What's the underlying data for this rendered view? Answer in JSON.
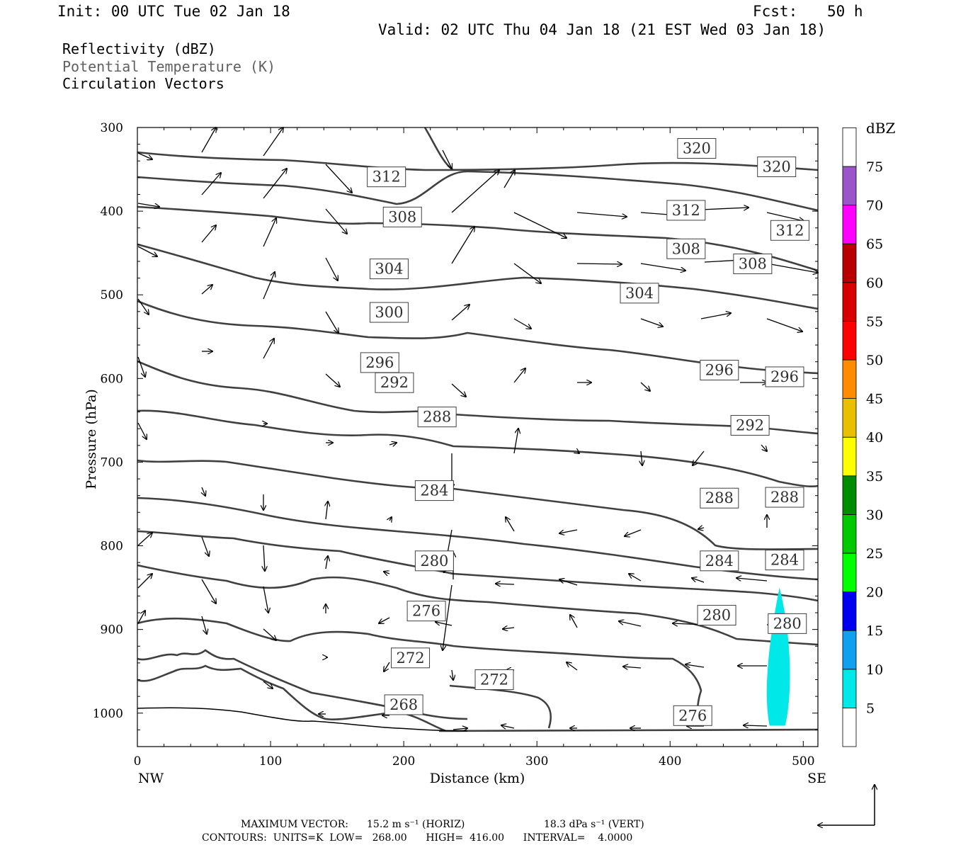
{
  "header": {
    "init": "Init: 00 UTC Tue 02 Jan 18",
    "fcst_label": "Fcst:",
    "fcst_value": "50 h",
    "valid": "Valid: 02 UTC Thu 04 Jan 18 (21 EST Wed 03 Jan 18)"
  },
  "legend_lines": [
    "Reflectivity (dBZ)",
    "Potential Temperature (K)",
    "Circulation Vectors"
  ],
  "footer": {
    "max_vector_label": "MAXIMUM VECTOR:",
    "horiz": "15.2 m s⁻¹ (HORIZ)",
    "vert": "18.3 dPa s⁻¹ (VERT)",
    "contours": "CONTOURS:  UNITS=K  LOW=   268.00      HIGH=  416.00      INTERVAL=    4.0000"
  },
  "chart_data": {
    "type": "heatmap",
    "description_kind": "cross-section",
    "xlabel": "Distance (km)",
    "ylabel": "Pressure (hPa)",
    "xlim": [
      0,
      511
    ],
    "ylim": [
      1040,
      300
    ],
    "x_ticks": [
      0,
      100,
      200,
      300,
      400,
      500
    ],
    "y_ticks": [
      300,
      400,
      500,
      600,
      700,
      800,
      900,
      1000
    ],
    "x_end_labels": {
      "left": "NW",
      "right": "SE"
    },
    "colorbar": {
      "title": "dBZ",
      "levels": [
        5,
        10,
        15,
        20,
        25,
        30,
        35,
        40,
        45,
        50,
        55,
        60,
        65,
        70,
        75
      ],
      "colors": [
        "#ffffff",
        "#00e8e8",
        "#0fa0f0",
        "#0000f0",
        "#00ff00",
        "#00c800",
        "#008c00",
        "#ffff00",
        "#e8c000",
        "#ff8c00",
        "#ff0000",
        "#d70000",
        "#b80000",
        "#ff00ff",
        "#9a55c8",
        "#ffffff"
      ]
    },
    "reflectivity_region": {
      "dbz_range": [
        5,
        10
      ],
      "x_center": 480,
      "p_top": 850,
      "p_bottom": 1015
    },
    "contour_color": "#404040",
    "contour_labels": [
      {
        "value": "320",
        "x": 420,
        "p": 325
      },
      {
        "value": "320",
        "x": 480,
        "p": 347
      },
      {
        "value": "312",
        "x": 187,
        "p": 359
      },
      {
        "value": "312",
        "x": 412,
        "p": 399
      },
      {
        "value": "312",
        "x": 490,
        "p": 423
      },
      {
        "value": "308",
        "x": 199,
        "p": 407
      },
      {
        "value": "308",
        "x": 412,
        "p": 445
      },
      {
        "value": "308",
        "x": 462,
        "p": 463
      },
      {
        "value": "304",
        "x": 189,
        "p": 469
      },
      {
        "value": "304",
        "x": 377,
        "p": 498
      },
      {
        "value": "300",
        "x": 189,
        "p": 521
      },
      {
        "value": "296",
        "x": 182,
        "p": 581
      },
      {
        "value": "296",
        "x": 437,
        "p": 590
      },
      {
        "value": "296",
        "x": 486,
        "p": 598
      },
      {
        "value": "292",
        "x": 193,
        "p": 605
      },
      {
        "value": "292",
        "x": 460,
        "p": 656
      },
      {
        "value": "288",
        "x": 225,
        "p": 646
      },
      {
        "value": "288",
        "x": 437,
        "p": 743
      },
      {
        "value": "288",
        "x": 486,
        "p": 742
      },
      {
        "value": "284",
        "x": 223,
        "p": 734
      },
      {
        "value": "284",
        "x": 437,
        "p": 818
      },
      {
        "value": "284",
        "x": 486,
        "p": 817
      },
      {
        "value": "280",
        "x": 223,
        "p": 818
      },
      {
        "value": "280",
        "x": 435,
        "p": 883
      },
      {
        "value": "280",
        "x": 488,
        "p": 893
      },
      {
        "value": "276",
        "x": 217,
        "p": 878
      },
      {
        "value": "276",
        "x": 417,
        "p": 1003
      },
      {
        "value": "272",
        "x": 205,
        "p": 934
      },
      {
        "value": "272",
        "x": 268,
        "p": 960
      },
      {
        "value": "268",
        "x": 200,
        "p": 990
      }
    ]
  }
}
